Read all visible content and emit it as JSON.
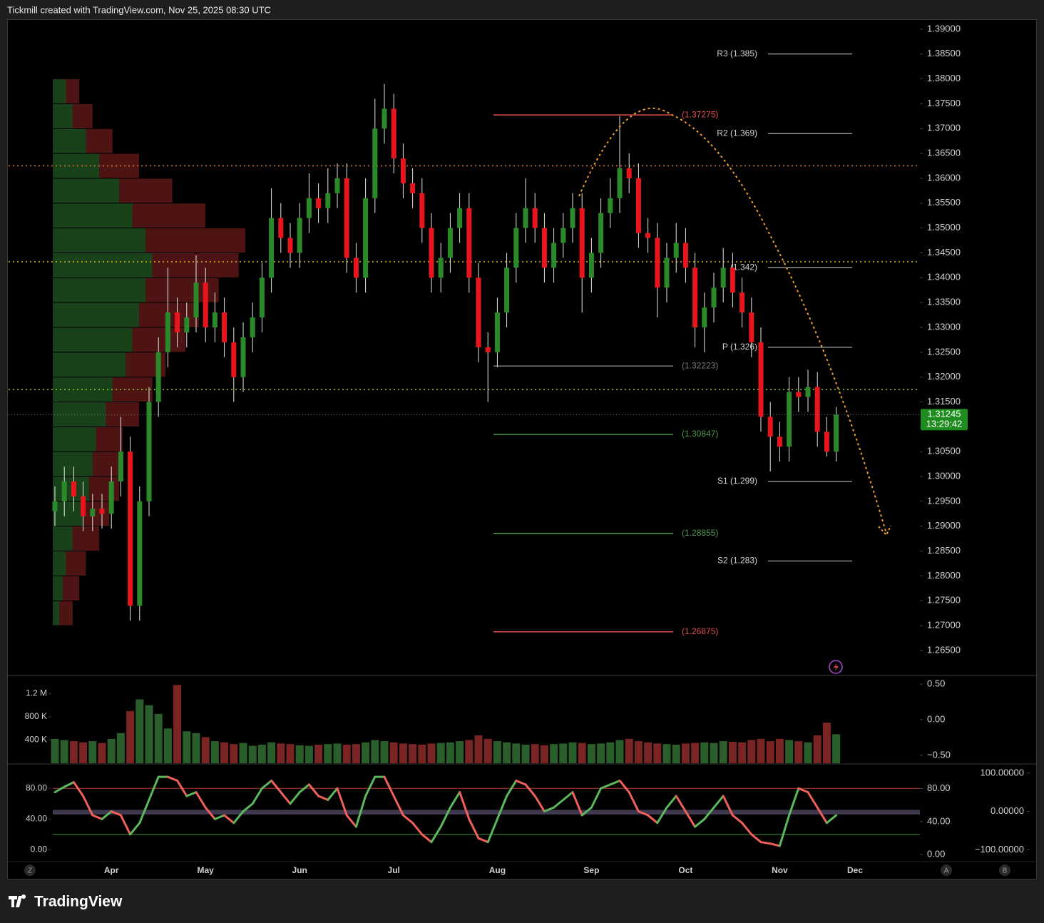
{
  "header": "Tickmill created with TradingView.com, Nov 25, 2025 08:30 UTC",
  "footer_logo": "TradingView",
  "scale_buttons": [
    "Z",
    "A",
    "B"
  ],
  "chart_data": [
    {
      "type": "candlestick",
      "categories": [
        null,
        null,
        null,
        null,
        null,
        null,
        "Apr",
        null,
        null,
        null,
        null,
        null,
        null,
        null,
        null,
        null,
        "May",
        null,
        null,
        null,
        null,
        null,
        null,
        null,
        null,
        null,
        "Jun",
        null,
        null,
        null,
        null,
        null,
        null,
        null,
        null,
        null,
        "Jul",
        null,
        null,
        null,
        null,
        null,
        null,
        null,
        null,
        null,
        null,
        "Aug",
        null,
        null,
        null,
        null,
        null,
        null,
        null,
        null,
        null,
        "Sep",
        null,
        null,
        null,
        null,
        null,
        null,
        null,
        null,
        null,
        "Oct",
        null,
        null,
        null,
        null,
        null,
        null,
        null,
        null,
        null,
        "Nov",
        null,
        null,
        null,
        null,
        null,
        null,
        null,
        "Dec"
      ],
      "open": [
        1.293,
        1.295,
        1.299,
        1.296,
        1.292,
        1.2935,
        1.2925,
        1.299,
        1.305,
        1.274,
        1.295,
        1.315,
        1.325,
        1.333,
        1.329,
        1.332,
        1.339,
        1.33,
        1.333,
        1.327,
        1.32,
        1.328,
        1.332,
        1.34,
        1.352,
        1.348,
        1.345,
        1.352,
        1.356,
        1.354,
        1.357,
        1.36,
        1.344,
        1.34,
        1.356,
        1.37,
        1.374,
        1.364,
        1.359,
        1.357,
        1.35,
        1.34,
        1.344,
        1.35,
        1.354,
        1.34,
        1.326,
        1.325,
        1.333,
        1.342,
        1.35,
        1.354,
        1.35,
        1.342,
        1.347,
        1.35,
        1.354,
        1.34,
        1.345,
        1.353,
        1.356,
        1.362,
        1.36,
        1.349,
        1.348,
        1.338,
        1.344,
        1.347,
        1.342,
        1.33,
        1.334,
        1.338,
        1.342,
        1.337,
        1.333,
        1.327,
        1.312,
        1.308,
        1.306,
        1.317,
        1.316,
        1.318,
        1.309,
        1.305,
        null,
        null
      ],
      "high": [
        1.298,
        1.302,
        1.302,
        1.299,
        1.2965,
        1.2965,
        1.302,
        1.312,
        1.308,
        1.298,
        1.318,
        1.328,
        1.342,
        1.336,
        1.335,
        1.3445,
        1.342,
        1.337,
        1.336,
        1.33,
        1.331,
        1.335,
        1.343,
        1.358,
        1.355,
        1.351,
        1.355,
        1.361,
        1.359,
        1.362,
        1.363,
        1.363,
        1.347,
        1.36,
        1.376,
        1.379,
        1.377,
        1.367,
        1.362,
        1.36,
        1.353,
        1.347,
        1.353,
        1.357,
        1.357,
        1.343,
        1.329,
        1.336,
        1.345,
        1.353,
        1.36,
        1.357,
        1.353,
        1.35,
        1.353,
        1.357,
        1.357,
        1.348,
        1.356,
        1.36,
        1.3725,
        1.365,
        1.363,
        1.352,
        1.351,
        1.347,
        1.351,
        1.35,
        1.345,
        1.337,
        1.341,
        1.346,
        1.345,
        1.34,
        1.336,
        1.33,
        1.315,
        1.311,
        1.32,
        1.32,
        1.3215,
        1.321,
        1.312,
        1.314,
        null,
        null
      ],
      "low": [
        1.29,
        1.292,
        1.293,
        1.289,
        1.289,
        1.2895,
        1.2895,
        1.296,
        1.271,
        1.271,
        1.292,
        1.312,
        1.322,
        1.326,
        1.326,
        1.329,
        1.327,
        1.327,
        1.324,
        1.315,
        1.317,
        1.325,
        1.329,
        1.337,
        1.345,
        1.342,
        1.342,
        1.349,
        1.351,
        1.351,
        1.354,
        1.341,
        1.337,
        1.337,
        1.353,
        1.367,
        1.361,
        1.356,
        1.354,
        1.347,
        1.337,
        1.337,
        1.341,
        1.347,
        1.337,
        1.323,
        1.315,
        1.322,
        1.33,
        1.339,
        1.347,
        1.347,
        1.339,
        1.339,
        1.344,
        1.347,
        1.333,
        1.337,
        1.342,
        1.35,
        1.353,
        1.357,
        1.346,
        1.345,
        1.332,
        1.335,
        1.341,
        1.339,
        1.326,
        1.325,
        1.331,
        1.335,
        1.334,
        1.33,
        1.324,
        1.309,
        1.301,
        1.303,
        1.303,
        1.313,
        1.313,
        1.306,
        1.304,
        1.303,
        null,
        null
      ],
      "close": [
        1.295,
        1.299,
        1.296,
        1.292,
        1.2935,
        1.2925,
        1.299,
        1.305,
        1.274,
        1.295,
        1.315,
        1.325,
        1.333,
        1.329,
        1.332,
        1.339,
        1.33,
        1.333,
        1.327,
        1.32,
        1.328,
        1.332,
        1.34,
        1.352,
        1.348,
        1.345,
        1.352,
        1.356,
        1.354,
        1.357,
        1.36,
        1.344,
        1.34,
        1.356,
        1.37,
        1.374,
        1.364,
        1.359,
        1.357,
        1.35,
        1.34,
        1.344,
        1.35,
        1.354,
        1.34,
        1.326,
        1.325,
        1.333,
        1.342,
        1.35,
        1.354,
        1.35,
        1.342,
        1.347,
        1.35,
        1.354,
        1.34,
        1.345,
        1.353,
        1.356,
        1.362,
        1.36,
        1.349,
        1.348,
        1.338,
        1.344,
        1.347,
        1.342,
        1.33,
        1.334,
        1.338,
        1.342,
        1.337,
        1.333,
        1.327,
        1.312,
        1.308,
        1.306,
        1.317,
        1.316,
        1.318,
        1.309,
        1.305,
        1.31245,
        null,
        null
      ],
      "up_color": "#2a8a2a",
      "down_color": "#e8161c",
      "wick_color": "#e6e6e6",
      "ylim": [
        1.2601,
        1.392
      ],
      "yticks": [
        {
          "value": 1.265,
          "label": "1.26500"
        },
        {
          "value": 1.27,
          "label": "1.27000"
        },
        {
          "value": 1.275,
          "label": "1.27500"
        },
        {
          "value": 1.28,
          "label": "1.28000"
        },
        {
          "value": 1.285,
          "label": "1.28500"
        },
        {
          "value": 1.29,
          "label": "1.29000"
        },
        {
          "value": 1.295,
          "label": "1.29500"
        },
        {
          "value": 1.3,
          "label": "1.30000"
        },
        {
          "value": 1.305,
          "label": "1.30500"
        },
        {
          "value": 1.31,
          "label": "1.31000"
        },
        {
          "value": 1.315,
          "label": "1.31500"
        },
        {
          "value": 1.32,
          "label": "1.32000"
        },
        {
          "value": 1.325,
          "label": "1.32500"
        },
        {
          "value": 1.33,
          "label": "1.33000"
        },
        {
          "value": 1.335,
          "label": "1.33500"
        },
        {
          "value": 1.34,
          "label": "1.34000"
        },
        {
          "value": 1.345,
          "label": "1.34500"
        },
        {
          "value": 1.35,
          "label": "1.35000"
        },
        {
          "value": 1.355,
          "label": "1.35500"
        },
        {
          "value": 1.36,
          "label": "1.36000"
        },
        {
          "value": 1.365,
          "label": "1.36500"
        },
        {
          "value": 1.37,
          "label": "1.37000"
        },
        {
          "value": 1.375,
          "label": "1.37500"
        },
        {
          "value": 1.38,
          "label": "1.38000"
        },
        {
          "value": 1.385,
          "label": "1.38500"
        },
        {
          "value": 1.39,
          "label": "1.39000"
        }
      ],
      "last_price": 1.31245,
      "countdown": "13:29:42",
      "last_price_color": "#1e8c1e",
      "levels": [
        {
          "kind": "pivot",
          "label": "R3 (1.385)",
          "value": 1.385,
          "color": "#d0d0d0"
        },
        {
          "kind": "pivot",
          "label": "R2 (1.369)",
          "value": 1.369,
          "color": "#d0d0d0"
        },
        {
          "kind": "pivot",
          "label": "(1.342)",
          "value": 1.342,
          "color": "#d0d0d0"
        },
        {
          "kind": "pivot",
          "label": "P (1.326)",
          "value": 1.326,
          "color": "#d0d0d0"
        },
        {
          "kind": "pivot",
          "label": "S1 (1.299)",
          "value": 1.299,
          "color": "#d0d0d0"
        },
        {
          "kind": "pivot",
          "label": "S2 (1.283)",
          "value": 1.283,
          "color": "#d0d0d0"
        },
        {
          "kind": "fib",
          "label": "(1.37275)",
          "value": 1.37275,
          "color": "#e05050"
        },
        {
          "kind": "fib",
          "label": "(1.32223)",
          "value": 1.32223,
          "color": "#777777"
        },
        {
          "kind": "fib",
          "label": "(1.30847)",
          "value": 1.30847,
          "color": "#4f9a4f"
        },
        {
          "kind": "fib",
          "label": "(1.28855)",
          "value": 1.28855,
          "color": "#4f9a4f"
        },
        {
          "kind": "fib",
          "label": "(1.26875)",
          "value": 1.26875,
          "color": "#e05050"
        }
      ],
      "dotted_lines": [
        {
          "value": 1.3625,
          "color": "#e07a2a"
        },
        {
          "value": 1.3432,
          "color": "#e8c020"
        },
        {
          "value": 1.3175,
          "color": "#9acd32"
        }
      ],
      "volume_profile": {
        "prices": [
          1.2725,
          1.2775,
          1.2825,
          1.2875,
          1.2925,
          1.2975,
          1.3025,
          1.3075,
          1.3125,
          1.3175,
          1.3225,
          1.3275,
          1.3325,
          1.3375,
          1.3425,
          1.3475,
          1.3525,
          1.3575,
          1.3625,
          1.3675,
          1.3725,
          1.3775
        ],
        "up": [
          10,
          15,
          20,
          30,
          45,
          55,
          60,
          65,
          80,
          90,
          110,
          120,
          130,
          140,
          150,
          140,
          120,
          100,
          70,
          50,
          30,
          20
        ],
        "down": [
          20,
          25,
          30,
          40,
          40,
          45,
          40,
          40,
          50,
          60,
          60,
          80,
          90,
          110,
          130,
          150,
          110,
          80,
          60,
          40,
          30,
          20
        ],
        "up_color": "#1e4d1e",
        "down_color": "#5c1818"
      }
    },
    {
      "type": "bar",
      "values": [
        420000,
        400000,
        380000,
        360000,
        380000,
        350000,
        420000,
        520000,
        900000,
        1100000,
        1000000,
        850000,
        600000,
        1350000,
        550000,
        520000,
        450000,
        380000,
        360000,
        330000,
        350000,
        300000,
        320000,
        360000,
        340000,
        330000,
        310000,
        300000,
        320000,
        330000,
        340000,
        320000,
        330000,
        360000,
        400000,
        380000,
        360000,
        340000,
        330000,
        320000,
        340000,
        350000,
        360000,
        380000,
        400000,
        480000,
        420000,
        380000,
        360000,
        340000,
        320000,
        330000,
        310000,
        330000,
        340000,
        360000,
        350000,
        330000,
        340000,
        360000,
        400000,
        420000,
        380000,
        360000,
        340000,
        330000,
        320000,
        340000,
        350000,
        360000,
        350000,
        380000,
        370000,
        360000,
        400000,
        420000,
        380000,
        420000,
        400000,
        380000,
        360000,
        480000,
        700000,
        500000,
        null,
        null
      ],
      "up_color": "#2a5e2a",
      "down_color": "#7a2424",
      "ylim": [
        0,
        1500000
      ],
      "yticks": [
        {
          "value": 400000,
          "label": "400 K"
        },
        {
          "value": 800000,
          "label": "800 K"
        },
        {
          "value": 1200000,
          "label": "1.2 M"
        }
      ],
      "y2lim": [
        -0.61,
        0.61
      ],
      "y2ticks": [
        {
          "value": 0.5,
          "label": "0.50"
        },
        {
          "value": 0,
          "label": "0.00"
        },
        {
          "value": -0.5,
          "label": "−0.50"
        }
      ]
    },
    {
      "type": "line",
      "values": [
        75,
        82,
        88,
        70,
        45,
        40,
        50,
        45,
        20,
        35,
        65,
        95,
        95,
        90,
        70,
        75,
        55,
        40,
        45,
        35,
        50,
        60,
        80,
        90,
        75,
        60,
        75,
        85,
        70,
        65,
        80,
        45,
        30,
        70,
        95,
        95,
        70,
        45,
        35,
        20,
        10,
        30,
        55,
        75,
        40,
        15,
        10,
        40,
        70,
        90,
        85,
        70,
        50,
        55,
        65,
        75,
        45,
        55,
        80,
        85,
        90,
        75,
        50,
        45,
        35,
        55,
        70,
        50,
        30,
        40,
        55,
        70,
        45,
        35,
        20,
        10,
        8,
        5,
        45,
        80,
        75,
        55,
        35,
        45,
        null,
        null
      ],
      "up_color": "#5cb85c",
      "down_color": "#f0605a",
      "ylim": [
        -15.5,
        110.9
      ],
      "yticks": [
        {
          "value": 80,
          "label": "80.00"
        },
        {
          "value": 40,
          "label": "40.00"
        },
        {
          "value": 0,
          "label": "0.00"
        }
      ],
      "y2lim": [
        -8.5,
        108.9
      ],
      "y2ticks": [
        {
          "value": 80,
          "label": "80.00"
        },
        {
          "value": 40,
          "label": "40.00"
        },
        {
          "value": 0,
          "label": "0.00"
        }
      ],
      "y3lim": [
        -131,
        122
      ],
      "y3ticks": [
        {
          "value": 100,
          "label": "100.00000"
        },
        {
          "value": 0,
          "label": "0.00000"
        },
        {
          "value": -100,
          "label": "−100.00000"
        }
      ],
      "levels": [
        {
          "value": 80,
          "color": "#c0392b"
        },
        {
          "value": 20,
          "color": "#3c8a3c"
        }
      ],
      "band": {
        "range": [
          46,
          52
        ],
        "color": "#5a5070"
      }
    }
  ]
}
